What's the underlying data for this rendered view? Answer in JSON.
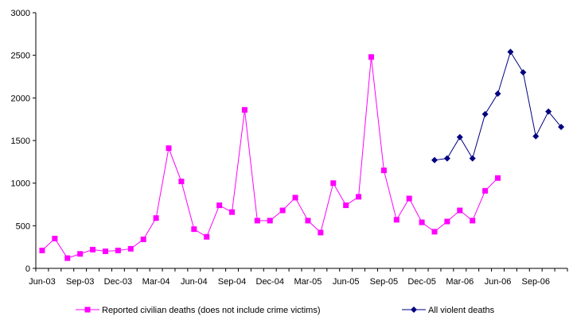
{
  "chart_data": {
    "type": "line",
    "title": "",
    "xlabel": "",
    "ylabel": "",
    "ylim": [
      0,
      3000
    ],
    "yticks": [
      0,
      500,
      1000,
      1500,
      2000,
      2500,
      3000
    ],
    "grid": false,
    "legend_placement": "bottom",
    "x": [
      "Jun-03",
      "Jul-03",
      "Aug-03",
      "Sep-03",
      "Oct-03",
      "Nov-03",
      "Dec-03",
      "Jan-04",
      "Feb-04",
      "Mar-04",
      "Apr-04",
      "May-04",
      "Jun-04",
      "Jul-04",
      "Aug-04",
      "Sep-04",
      "Oct-04",
      "Nov-04",
      "Dec-04",
      "Jan-05",
      "Feb-05",
      "Mar-05",
      "Apr-05",
      "May-05",
      "Jun-05",
      "Jul-05",
      "Aug-05",
      "Sep-05",
      "Oct-05",
      "Nov-05",
      "Dec-05",
      "Jan-06",
      "Feb-06",
      "Mar-06",
      "Apr-06",
      "May-06",
      "Jun-06",
      "Jul-06",
      "Aug-06",
      "Sep-06",
      "Oct-06",
      "Nov-06"
    ],
    "xtick_labels": [
      "Jun-03",
      "Sep-03",
      "Dec-03",
      "Mar-04",
      "Jun-04",
      "Sep-04",
      "Dec-04",
      "Mar-05",
      "Jun-05",
      "Sep-05",
      "Dec-05",
      "Mar-06",
      "Jun-06",
      "Sep-06"
    ],
    "series": [
      {
        "name": "Reported civilian deaths (does not include crime victims)",
        "color": "#ff00ff",
        "marker": "square",
        "values": [
          210,
          350,
          120,
          170,
          220,
          200,
          210,
          230,
          340,
          590,
          1410,
          1020,
          460,
          370,
          740,
          660,
          1860,
          560,
          560,
          680,
          830,
          560,
          420,
          1000,
          740,
          840,
          2480,
          1150,
          570,
          820,
          540,
          430,
          550,
          680,
          560,
          910,
          1060,
          null,
          null,
          null,
          null,
          null
        ]
      },
      {
        "name": "All violent deaths",
        "color": "#000080",
        "marker": "diamond",
        "values": [
          null,
          null,
          null,
          null,
          null,
          null,
          null,
          null,
          null,
          null,
          null,
          null,
          null,
          null,
          null,
          null,
          null,
          null,
          null,
          null,
          null,
          null,
          null,
          null,
          null,
          null,
          null,
          null,
          null,
          null,
          null,
          1270,
          1290,
          1540,
          1290,
          1810,
          2050,
          2540,
          2300,
          1550,
          1840,
          1660
        ]
      }
    ]
  }
}
